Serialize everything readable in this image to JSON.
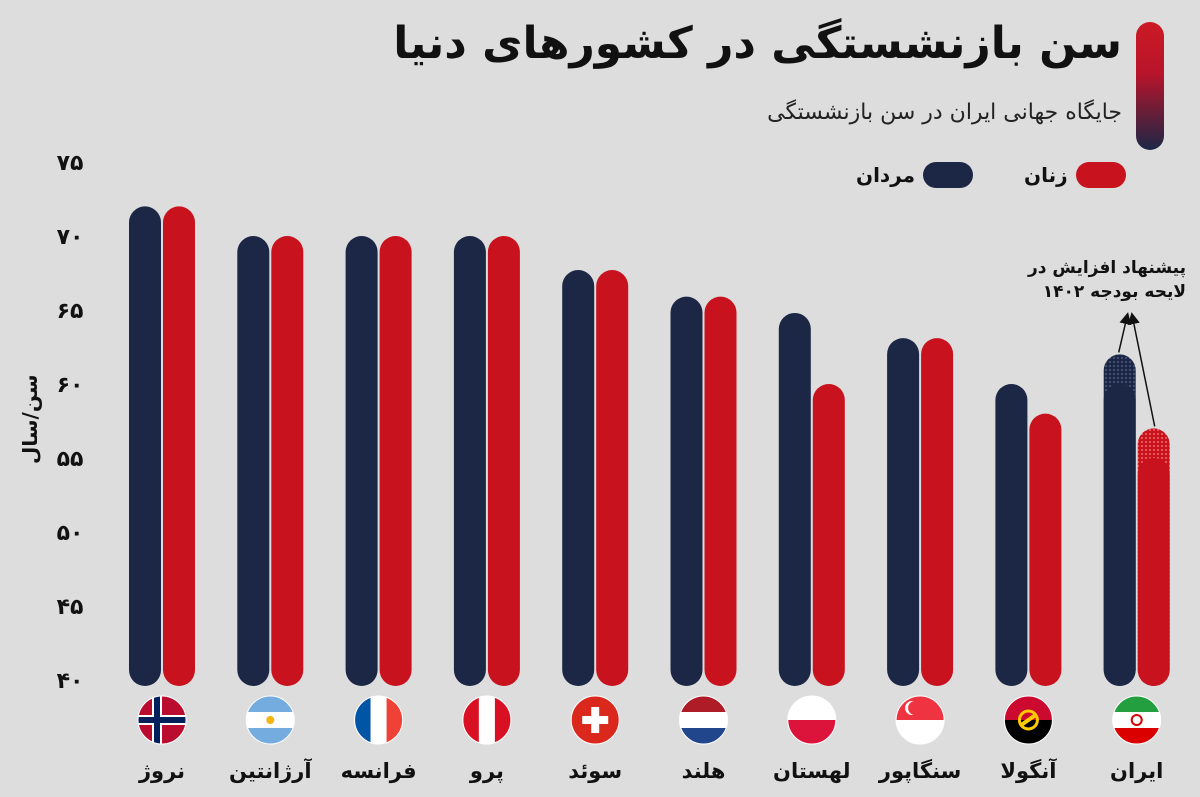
{
  "header": {
    "title": "سن بازنشستگی در کشورهای دنیا",
    "subtitle": "جایگاه جهانی ایران در سن بازنشستگی"
  },
  "legend": {
    "men": "مردان",
    "women": "زنان"
  },
  "annotation": {
    "proposal": "پیشنهاد افزایش در لایحه بودجه ۱۴۰۲"
  },
  "colors": {
    "men": "#1c2746",
    "women": "#c8121e",
    "background": "#dddddd"
  },
  "chart_data": {
    "type": "bar",
    "ylabel": "سن/سال",
    "ylim": [
      40,
      75
    ],
    "yticks": [
      40,
      45,
      50,
      55,
      60,
      65,
      70,
      75
    ],
    "ytick_labels": [
      "۴۰",
      "۴۵",
      "۵۰",
      "۵۵",
      "۶۰",
      "۶۵",
      "۷۰",
      "۷۵"
    ],
    "categories": [
      "نروژ",
      "آرژانتین",
      "فرانسه",
      "پرو",
      "سوئد",
      "هلند",
      "لهستان",
      "سنگاپور",
      "آنگولا",
      "ایران"
    ],
    "flags": [
      "norway-flag",
      "argentina-flag",
      "france-flag",
      "peru-flag",
      "switzerland-flag",
      "netherlands-flag",
      "poland-flag",
      "singapore-flag",
      "angola-flag",
      "iran-flag"
    ],
    "series": [
      {
        "name": "مردان",
        "values": [
          72,
          70,
          70,
          70,
          67.7,
          65.9,
          64.8,
          63.1,
          60,
          60
        ]
      },
      {
        "name": "زنان",
        "values": [
          72,
          70,
          70,
          70,
          67.7,
          65.9,
          60,
          63.1,
          58,
          55
        ]
      }
    ],
    "proposed_increase": {
      "category": "ایران",
      "men_to": 62,
      "women_to": 57
    }
  }
}
